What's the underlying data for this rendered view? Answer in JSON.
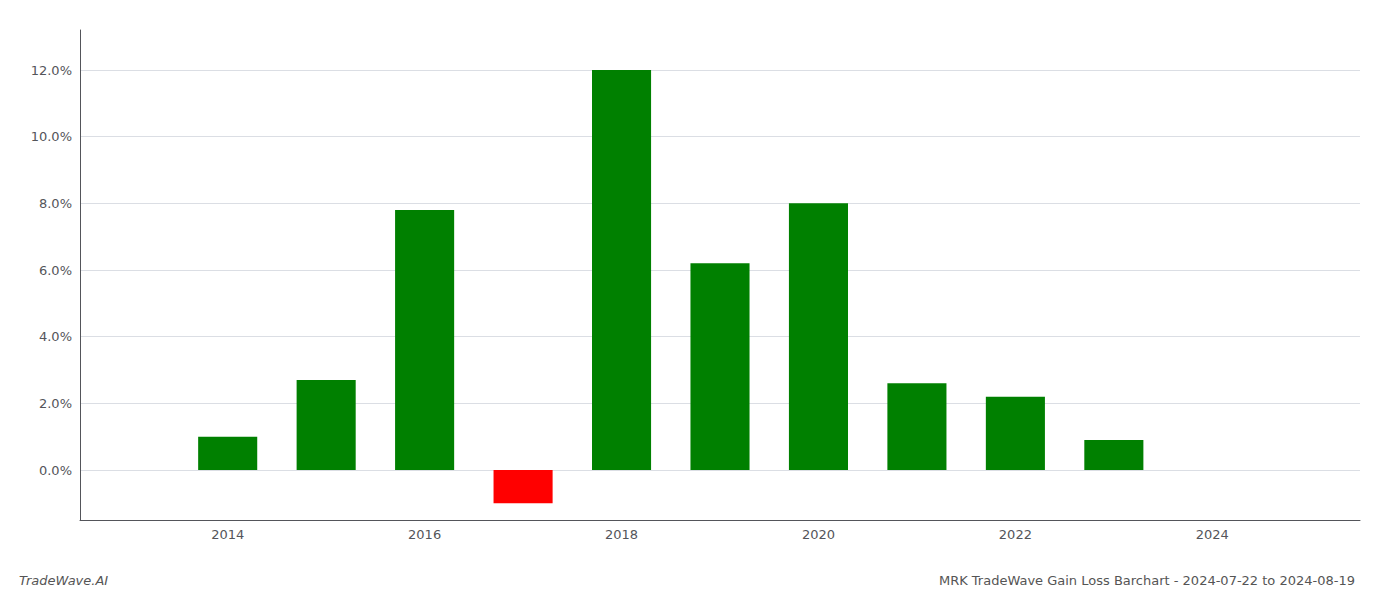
{
  "chart_data": {
    "type": "bar",
    "title": "MRK TradeWave Gain Loss Barchart - 2024-07-22 to 2024-08-19",
    "annotations": [
      "TradeWave.AI"
    ],
    "x": [
      2014,
      2015,
      2016,
      2017,
      2018,
      2019,
      2020,
      2021,
      2022,
      2023
    ],
    "values": [
      0.01,
      0.027,
      0.078,
      -0.01,
      0.12,
      0.062,
      0.08,
      0.026,
      0.022,
      0.009
    ],
    "colors": [
      "#008000",
      "#008000",
      "#008000",
      "#ff0000",
      "#008000",
      "#008000",
      "#008000",
      "#008000",
      "#008000",
      "#008000"
    ],
    "xlim": [
      2012.5,
      2025.5
    ],
    "xticks": [
      2014,
      2016,
      2018,
      2020,
      2022,
      2024
    ],
    "ylim": [
      -0.015,
      0.132
    ],
    "yticks": [
      {
        "value": 0.0,
        "label": "0.0%"
      },
      {
        "value": 0.02,
        "label": "2.0%"
      },
      {
        "value": 0.04,
        "label": "4.0%"
      },
      {
        "value": 0.06,
        "label": "6.0%"
      },
      {
        "value": 0.08,
        "label": "8.0%"
      },
      {
        "value": 0.1,
        "label": "10.0%"
      },
      {
        "value": 0.12,
        "label": "12.0%"
      }
    ],
    "grid": true
  }
}
